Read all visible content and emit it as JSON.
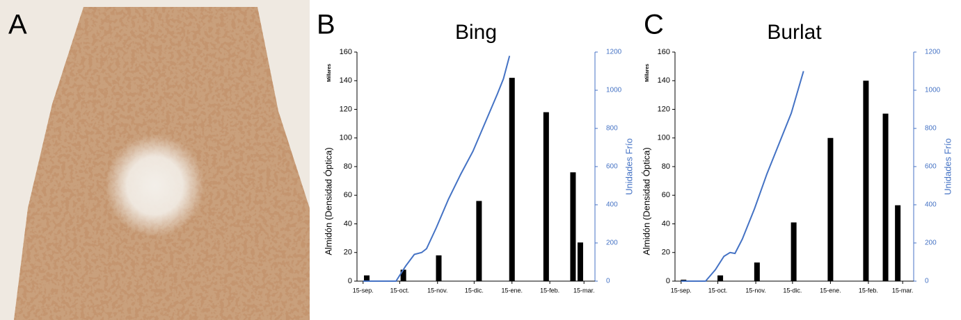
{
  "panel_labels": [
    "A",
    "B",
    "C"
  ],
  "chart_data": [
    {
      "type": "combo",
      "title": "Bing",
      "ylabel": "Almidón (Densidad Óptica)",
      "y2label": "Unidades Frío",
      "yunit": "Millares",
      "xlim": [
        -5,
        190
      ],
      "xticks": [
        {
          "value": 0,
          "label": "15-sep."
        },
        {
          "value": 30,
          "label": "15-oct."
        },
        {
          "value": 61,
          "label": "15-nov."
        },
        {
          "value": 91,
          "label": "15-dic."
        },
        {
          "value": 122,
          "label": "15-ene."
        },
        {
          "value": 153,
          "label": "15-feb."
        },
        {
          "value": 181,
          "label": "15-mar."
        }
      ],
      "ylim": [
        0,
        160
      ],
      "yticks": [
        0,
        20,
        40,
        60,
        80,
        100,
        120,
        140,
        160
      ],
      "y2lim": [
        0,
        1200
      ],
      "y2ticks": [
        0,
        200,
        400,
        600,
        800,
        1000,
        1200
      ],
      "series": [
        {
          "type": "bar",
          "color": "#000000",
          "x": [
            3,
            33,
            62,
            95,
            122,
            150,
            172,
            178
          ],
          "values": [
            4,
            8,
            18,
            56,
            142,
            118,
            76,
            27
          ]
        },
        {
          "type": "line",
          "axis": "y2",
          "color": "#4472c4",
          "x": [
            0,
            27,
            35,
            42,
            48,
            52,
            60,
            70,
            80,
            90,
            100,
            110,
            115,
            120
          ],
          "values": [
            0,
            0,
            80,
            140,
            150,
            170,
            280,
            430,
            560,
            680,
            830,
            980,
            1060,
            1180
          ]
        }
      ]
    },
    {
      "type": "combo",
      "title": "Burlat",
      "ylabel": "Almidón (Densidad Óptica)",
      "y2label": "Unidades Frío",
      "yunit": "Millares",
      "xlim": [
        -5,
        190
      ],
      "xticks": [
        {
          "value": 0,
          "label": "15-sep."
        },
        {
          "value": 30,
          "label": "15-oct."
        },
        {
          "value": 61,
          "label": "15-nov."
        },
        {
          "value": 91,
          "label": "15-dic."
        },
        {
          "value": 122,
          "label": "15-ene."
        },
        {
          "value": 153,
          "label": "15-feb."
        },
        {
          "value": 181,
          "label": "15-mar."
        }
      ],
      "ylim": [
        0,
        160
      ],
      "yticks": [
        0,
        20,
        40,
        60,
        80,
        100,
        120,
        140,
        160
      ],
      "y2lim": [
        0,
        1200
      ],
      "y2ticks": [
        0,
        200,
        400,
        600,
        800,
        1000,
        1200
      ],
      "series": [
        {
          "type": "bar",
          "color": "#000000",
          "x": [
            2,
            32,
            62,
            92,
            122,
            151,
            167,
            177
          ],
          "values": [
            1,
            4,
            13,
            41,
            100,
            140,
            117,
            53
          ]
        },
        {
          "type": "line",
          "axis": "y2",
          "color": "#4472c4",
          "x": [
            0,
            20,
            28,
            35,
            40,
            44,
            50,
            60,
            70,
            80,
            90,
            100
          ],
          "values": [
            0,
            0,
            60,
            130,
            150,
            145,
            220,
            380,
            560,
            720,
            880,
            1100
          ]
        }
      ]
    }
  ]
}
